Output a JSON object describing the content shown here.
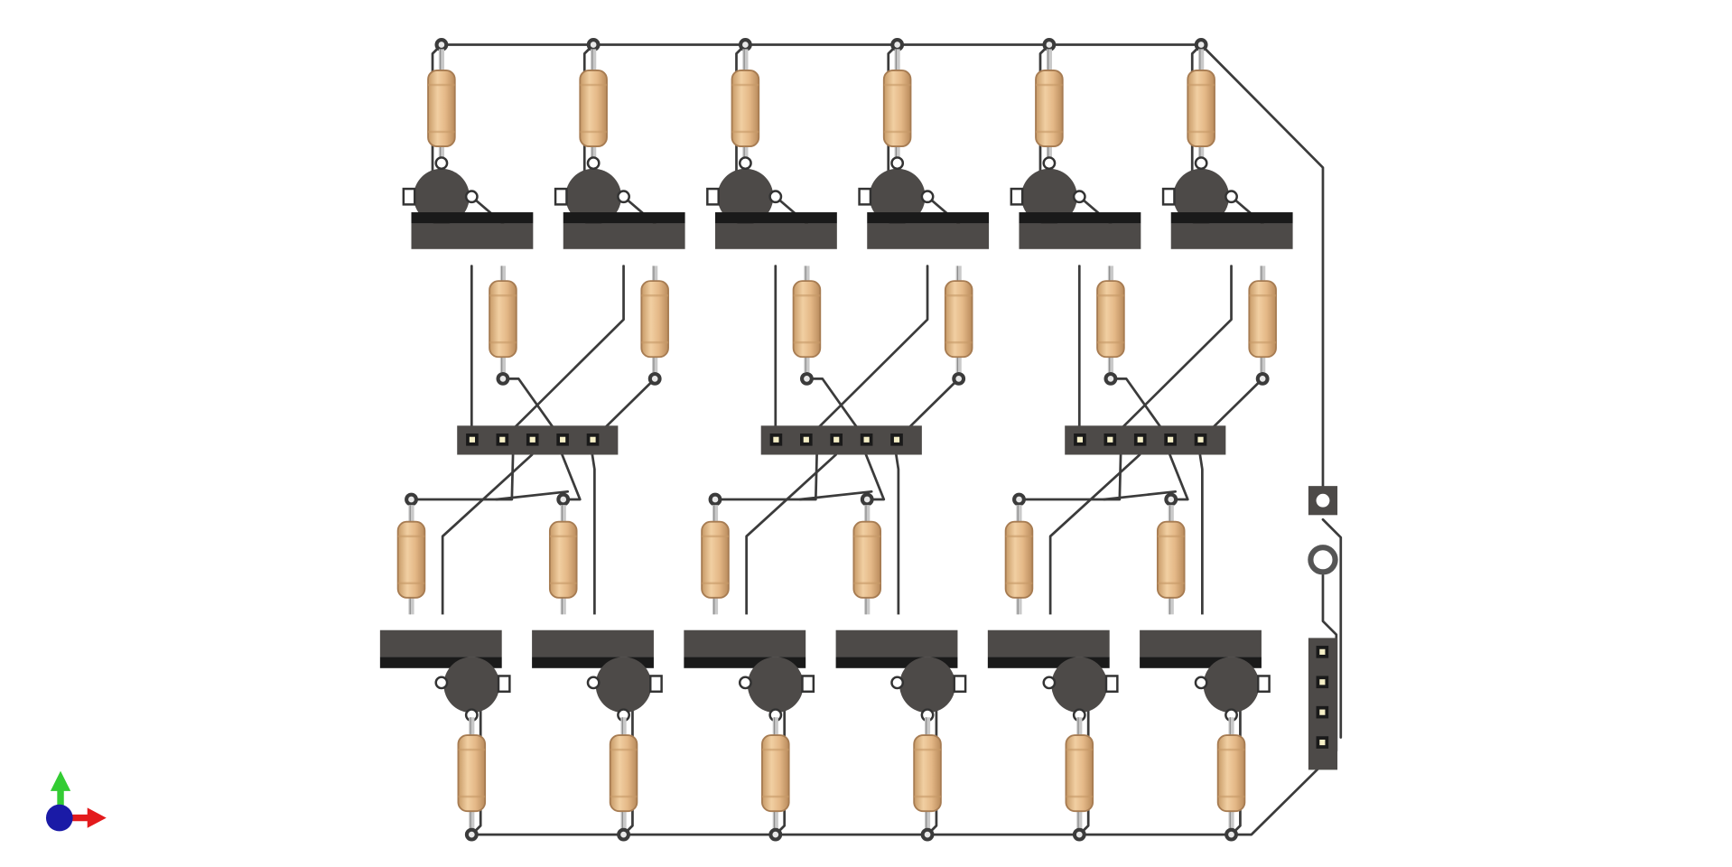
{
  "scene": {
    "view": "top",
    "background_color": "#ffffff",
    "colors": {
      "trace": "#3b3b3b",
      "resistor_body": "#e2b887",
      "resistor_edge": "#a77c52",
      "component_dark": "#1a1a1a",
      "component_body": "#4d4a48",
      "ring": "#555555",
      "axis_x": "#e31a1c",
      "axis_y": "#33cc33",
      "axis_z": "#1a1aa6"
    }
  },
  "board": {
    "upper_transistor_count": 6,
    "lower_transistor_count": 6,
    "resistor_count": 24,
    "header_5pin_count": 3,
    "header_4pin_count": 1,
    "pins_per_center_header": 5,
    "pins_per_side_header": 4
  },
  "axis_gizmo": {
    "icons": [
      "x-axis-arrow-icon",
      "y-axis-arrow-icon",
      "z-axis-origin-icon"
    ]
  }
}
